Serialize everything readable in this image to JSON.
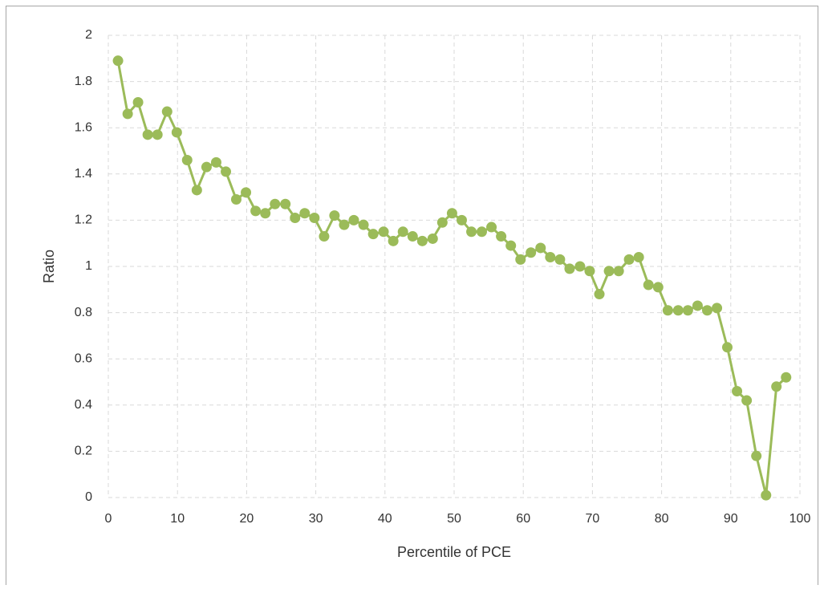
{
  "chart_data": {
    "type": "line",
    "x_label": "Percentile of PCE",
    "y_label": "Ratio",
    "x": [
      1.4,
      2.8,
      4.3,
      5.7,
      7.1,
      8.5,
      9.9,
      11.4,
      12.8,
      14.2,
      15.6,
      17.0,
      18.5,
      19.9,
      21.3,
      22.7,
      24.1,
      25.6,
      27.0,
      28.4,
      29.8,
      31.2,
      32.7,
      34.1,
      35.5,
      36.9,
      38.3,
      39.8,
      41.2,
      42.6,
      44.0,
      45.4,
      46.9,
      48.3,
      49.7,
      51.1,
      52.5,
      54.0,
      55.4,
      56.8,
      58.2,
      59.6,
      61.1,
      62.5,
      63.9,
      65.3,
      66.7,
      68.2,
      69.6,
      71.0,
      72.4,
      73.8,
      75.3,
      76.7,
      78.1,
      79.5,
      80.9,
      82.4,
      83.8,
      85.2,
      86.6,
      88.0,
      89.5,
      90.9,
      92.3,
      93.7,
      95.1,
      96.6,
      98.0
    ],
    "values": [
      1.89,
      1.66,
      1.71,
      1.57,
      1.57,
      1.67,
      1.58,
      1.46,
      1.33,
      1.43,
      1.45,
      1.41,
      1.29,
      1.32,
      1.24,
      1.23,
      1.27,
      1.27,
      1.21,
      1.23,
      1.21,
      1.13,
      1.22,
      1.18,
      1.2,
      1.18,
      1.14,
      1.15,
      1.11,
      1.15,
      1.13,
      1.11,
      1.12,
      1.19,
      1.23,
      1.2,
      1.15,
      1.15,
      1.17,
      1.13,
      1.09,
      1.03,
      1.06,
      1.08,
      1.04,
      1.03,
      0.99,
      1.0,
      0.98,
      0.88,
      0.98,
      0.98,
      1.03,
      1.04,
      0.92,
      0.91,
      0.81,
      0.81,
      0.81,
      0.83,
      0.81,
      0.82,
      0.65,
      0.46,
      0.42,
      0.18,
      0.01,
      0.48,
      0.52
    ],
    "color": "#9bbb59",
    "xlim": [
      0,
      100
    ],
    "xticks": [
      0,
      10,
      20,
      30,
      40,
      50,
      60,
      70,
      80,
      90,
      100
    ],
    "ylim": [
      0,
      2
    ],
    "yticks": [
      0,
      0.2,
      0.4,
      0.6,
      0.8,
      1,
      1.2,
      1.4,
      1.6,
      1.8,
      2
    ],
    "grid": true
  }
}
